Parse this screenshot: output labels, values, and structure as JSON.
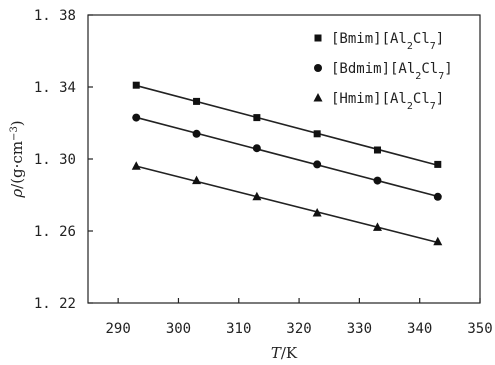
{
  "chart_data": {
    "type": "scatter",
    "xlabel": "T/K",
    "ylabel": "ρ/(g·cm⁻³)",
    "xlabel_parts": {
      "italic": "T",
      "rest": "/K"
    },
    "ylabel_parts": {
      "italic": "ρ",
      "pre": "/(g·cm",
      "sup": "−3",
      "post": ")"
    },
    "xlim": [
      285,
      350
    ],
    "ylim": [
      1.22,
      1.38
    ],
    "xticks": [
      290,
      300,
      310,
      320,
      330,
      340,
      350
    ],
    "yticks": [
      1.22,
      1.26,
      1.3,
      1.34,
      1.38
    ],
    "ytick_labels": [
      "1. 22",
      "1. 26",
      "1. 30",
      "1. 34",
      "1. 38"
    ],
    "legend_position": "top-right",
    "fit_lines": true,
    "series": [
      {
        "name": "[Bmim][Al2Cl7]",
        "name_parts": {
          "pre": "[Bmim][Al",
          "sub1": "2",
          "mid": "Cl",
          "sub2": "7",
          "post": "]"
        },
        "marker": "square",
        "x": [
          293,
          303,
          313,
          323,
          333,
          343
        ],
        "y": [
          1.341,
          1.332,
          1.323,
          1.314,
          1.305,
          1.297
        ]
      },
      {
        "name": "[Bdmim][Al2Cl7]",
        "name_parts": {
          "pre": "[Bdmim][Al",
          "sub1": "2",
          "mid": "Cl",
          "sub2": "7",
          "post": "]"
        },
        "marker": "circle",
        "x": [
          293,
          303,
          313,
          323,
          333,
          343
        ],
        "y": [
          1.323,
          1.314,
          1.306,
          1.297,
          1.288,
          1.279
        ]
      },
      {
        "name": "[Hmim][Al2Cl7]",
        "name_parts": {
          "pre": "[Hmim][Al",
          "sub1": "2",
          "mid": "Cl",
          "sub2": "7",
          "post": "]"
        },
        "marker": "triangle",
        "x": [
          293,
          303,
          313,
          323,
          333,
          343
        ],
        "y": [
          1.296,
          1.288,
          1.279,
          1.27,
          1.262,
          1.254
        ]
      }
    ]
  }
}
